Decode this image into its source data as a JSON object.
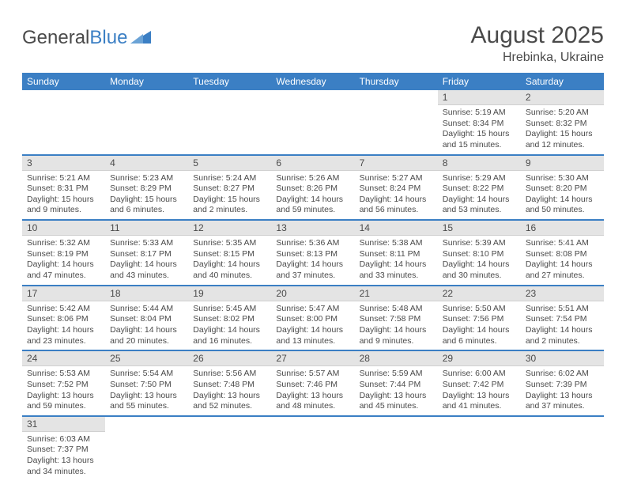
{
  "logo": {
    "part1": "General",
    "part2": "Blue"
  },
  "title": "August 2025",
  "location": "Hrebinka, Ukraine",
  "colors": {
    "header_bg": "#3b7fc4",
    "header_text": "#ffffff",
    "daynum_bg": "#e4e4e4",
    "text": "#4a4a4a",
    "row_border": "#3b7fc4"
  },
  "weekdays": [
    "Sunday",
    "Monday",
    "Tuesday",
    "Wednesday",
    "Thursday",
    "Friday",
    "Saturday"
  ],
  "first_weekday_index": 5,
  "days": [
    {
      "n": 1,
      "sr": "5:19 AM",
      "ss": "8:34 PM",
      "dl": "15 hours and 15 minutes."
    },
    {
      "n": 2,
      "sr": "5:20 AM",
      "ss": "8:32 PM",
      "dl": "15 hours and 12 minutes."
    },
    {
      "n": 3,
      "sr": "5:21 AM",
      "ss": "8:31 PM",
      "dl": "15 hours and 9 minutes."
    },
    {
      "n": 4,
      "sr": "5:23 AM",
      "ss": "8:29 PM",
      "dl": "15 hours and 6 minutes."
    },
    {
      "n": 5,
      "sr": "5:24 AM",
      "ss": "8:27 PM",
      "dl": "15 hours and 2 minutes."
    },
    {
      "n": 6,
      "sr": "5:26 AM",
      "ss": "8:26 PM",
      "dl": "14 hours and 59 minutes."
    },
    {
      "n": 7,
      "sr": "5:27 AM",
      "ss": "8:24 PM",
      "dl": "14 hours and 56 minutes."
    },
    {
      "n": 8,
      "sr": "5:29 AM",
      "ss": "8:22 PM",
      "dl": "14 hours and 53 minutes."
    },
    {
      "n": 9,
      "sr": "5:30 AM",
      "ss": "8:20 PM",
      "dl": "14 hours and 50 minutes."
    },
    {
      "n": 10,
      "sr": "5:32 AM",
      "ss": "8:19 PM",
      "dl": "14 hours and 47 minutes."
    },
    {
      "n": 11,
      "sr": "5:33 AM",
      "ss": "8:17 PM",
      "dl": "14 hours and 43 minutes."
    },
    {
      "n": 12,
      "sr": "5:35 AM",
      "ss": "8:15 PM",
      "dl": "14 hours and 40 minutes."
    },
    {
      "n": 13,
      "sr": "5:36 AM",
      "ss": "8:13 PM",
      "dl": "14 hours and 37 minutes."
    },
    {
      "n": 14,
      "sr": "5:38 AM",
      "ss": "8:11 PM",
      "dl": "14 hours and 33 minutes."
    },
    {
      "n": 15,
      "sr": "5:39 AM",
      "ss": "8:10 PM",
      "dl": "14 hours and 30 minutes."
    },
    {
      "n": 16,
      "sr": "5:41 AM",
      "ss": "8:08 PM",
      "dl": "14 hours and 27 minutes."
    },
    {
      "n": 17,
      "sr": "5:42 AM",
      "ss": "8:06 PM",
      "dl": "14 hours and 23 minutes."
    },
    {
      "n": 18,
      "sr": "5:44 AM",
      "ss": "8:04 PM",
      "dl": "14 hours and 20 minutes."
    },
    {
      "n": 19,
      "sr": "5:45 AM",
      "ss": "8:02 PM",
      "dl": "14 hours and 16 minutes."
    },
    {
      "n": 20,
      "sr": "5:47 AM",
      "ss": "8:00 PM",
      "dl": "14 hours and 13 minutes."
    },
    {
      "n": 21,
      "sr": "5:48 AM",
      "ss": "7:58 PM",
      "dl": "14 hours and 9 minutes."
    },
    {
      "n": 22,
      "sr": "5:50 AM",
      "ss": "7:56 PM",
      "dl": "14 hours and 6 minutes."
    },
    {
      "n": 23,
      "sr": "5:51 AM",
      "ss": "7:54 PM",
      "dl": "14 hours and 2 minutes."
    },
    {
      "n": 24,
      "sr": "5:53 AM",
      "ss": "7:52 PM",
      "dl": "13 hours and 59 minutes."
    },
    {
      "n": 25,
      "sr": "5:54 AM",
      "ss": "7:50 PM",
      "dl": "13 hours and 55 minutes."
    },
    {
      "n": 26,
      "sr": "5:56 AM",
      "ss": "7:48 PM",
      "dl": "13 hours and 52 minutes."
    },
    {
      "n": 27,
      "sr": "5:57 AM",
      "ss": "7:46 PM",
      "dl": "13 hours and 48 minutes."
    },
    {
      "n": 28,
      "sr": "5:59 AM",
      "ss": "7:44 PM",
      "dl": "13 hours and 45 minutes."
    },
    {
      "n": 29,
      "sr": "6:00 AM",
      "ss": "7:42 PM",
      "dl": "13 hours and 41 minutes."
    },
    {
      "n": 30,
      "sr": "6:02 AM",
      "ss": "7:39 PM",
      "dl": "13 hours and 37 minutes."
    },
    {
      "n": 31,
      "sr": "6:03 AM",
      "ss": "7:37 PM",
      "dl": "13 hours and 34 minutes."
    }
  ],
  "labels": {
    "sunrise": "Sunrise: ",
    "sunset": "Sunset: ",
    "daylight": "Daylight: "
  }
}
